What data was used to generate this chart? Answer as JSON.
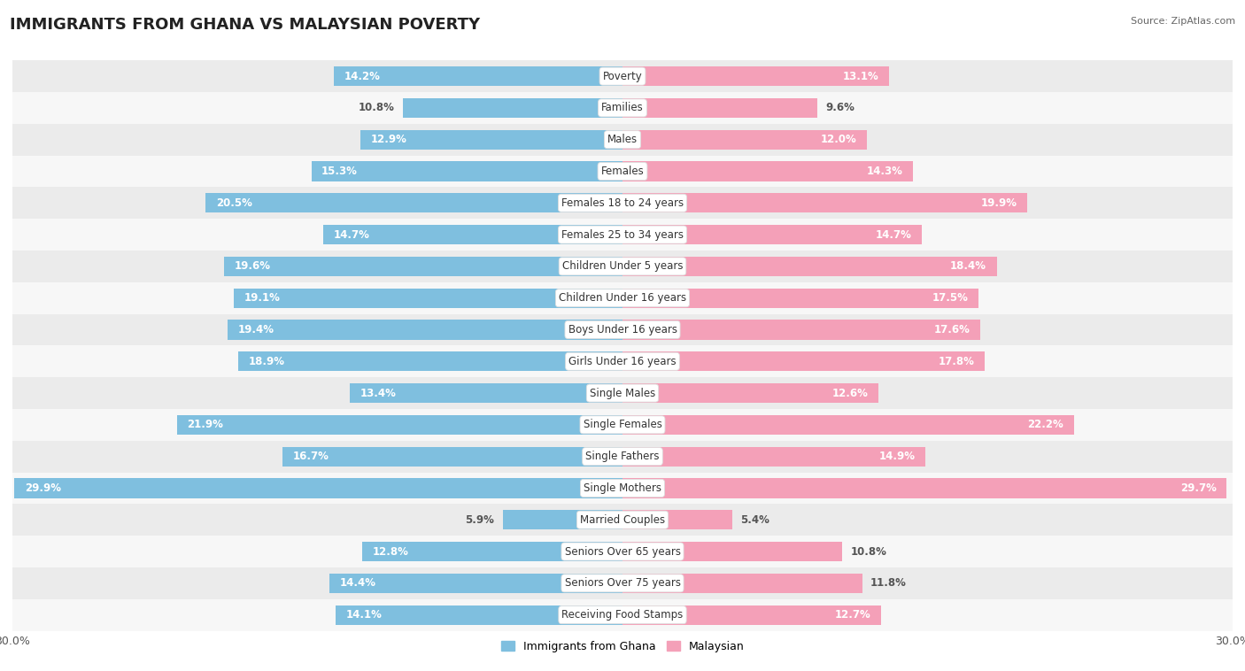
{
  "title": "IMMIGRANTS FROM GHANA VS MALAYSIAN POVERTY",
  "source": "Source: ZipAtlas.com",
  "categories": [
    "Poverty",
    "Families",
    "Males",
    "Females",
    "Females 18 to 24 years",
    "Females 25 to 34 years",
    "Children Under 5 years",
    "Children Under 16 years",
    "Boys Under 16 years",
    "Girls Under 16 years",
    "Single Males",
    "Single Females",
    "Single Fathers",
    "Single Mothers",
    "Married Couples",
    "Seniors Over 65 years",
    "Seniors Over 75 years",
    "Receiving Food Stamps"
  ],
  "ghana_values": [
    14.2,
    10.8,
    12.9,
    15.3,
    20.5,
    14.7,
    19.6,
    19.1,
    19.4,
    18.9,
    13.4,
    21.9,
    16.7,
    29.9,
    5.9,
    12.8,
    14.4,
    14.1
  ],
  "malaysian_values": [
    13.1,
    9.6,
    12.0,
    14.3,
    19.9,
    14.7,
    18.4,
    17.5,
    17.6,
    17.8,
    12.6,
    22.2,
    14.9,
    29.7,
    5.4,
    10.8,
    11.8,
    12.7
  ],
  "ghana_color": "#7fbfdf",
  "malaysian_color": "#f4a0b8",
  "label_color_white": "#ffffff",
  "label_color_dark": "#555555",
  "bg_color": "#ffffff",
  "row_bg_even": "#ebebeb",
  "row_bg_odd": "#f7f7f7",
  "max_value": 30.0,
  "legend_ghana": "Immigrants from Ghana",
  "legend_malaysian": "Malaysian",
  "bar_height": 0.62,
  "title_fontsize": 13,
  "label_fontsize": 8.5,
  "category_fontsize": 8.5,
  "axis_label_fontsize": 9,
  "white_label_threshold": 12.0
}
